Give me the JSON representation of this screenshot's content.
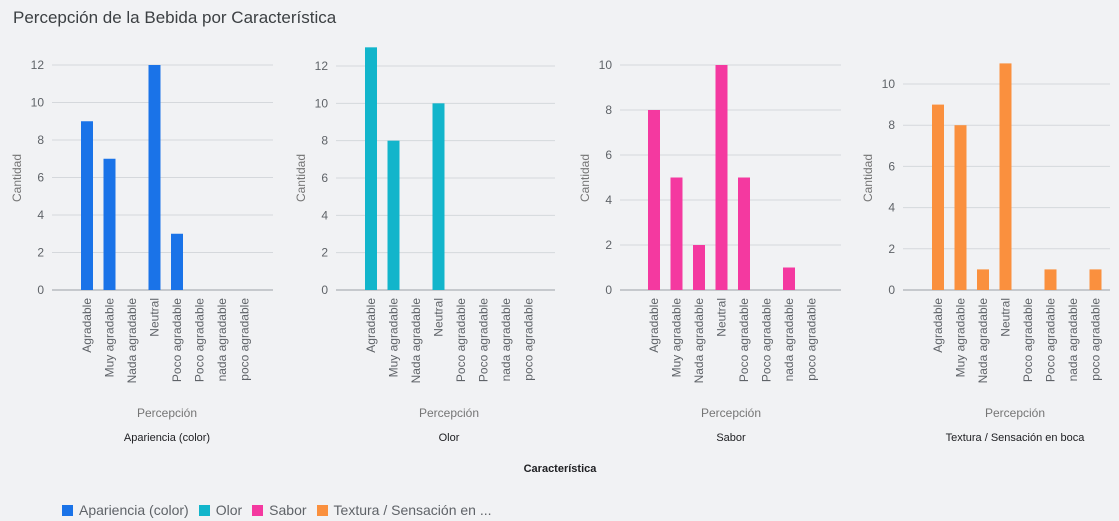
{
  "chart_data": {
    "type": "bar",
    "title": "Percepción de la Bebida por Característica",
    "outer_xlabel": "Característica",
    "legend_position": "bottom-left",
    "grid": true,
    "legend": [
      {
        "name": "Apariencia (color)",
        "color": "#1a73e8"
      },
      {
        "name": "Olor",
        "color": "#12b5cb"
      },
      {
        "name": "Sabor",
        "color": "#f439a0"
      },
      {
        "name": "Textura / Sensación en ...",
        "color": "#fa903e"
      }
    ],
    "facets": [
      {
        "facet_label": "Apariencia (color)",
        "xlabel": "Percepción",
        "ylabel": "Cantidad",
        "color": "#1a73e8",
        "ylim": [
          0,
          12
        ],
        "yticks": [
          0,
          2,
          4,
          6,
          8,
          10,
          12
        ],
        "categories": [
          "Agradable",
          "Muy agradable",
          "Nada agradable",
          "Neutral",
          "Poco agradable",
          "Poco agradable",
          "nada agradable",
          "poco agradable"
        ],
        "values": [
          9,
          7,
          0,
          12,
          3,
          0,
          0,
          0
        ]
      },
      {
        "facet_label": "Olor",
        "xlabel": "Percepción",
        "ylabel": "Cantidad",
        "color": "#12b5cb",
        "ylim": [
          0,
          13
        ],
        "yticks": [
          0,
          2,
          4,
          6,
          8,
          10,
          12
        ],
        "categories": [
          "Agradable",
          "Muy agradable",
          "Nada agradable",
          "Neutral",
          "Poco agradable",
          "Poco agradable",
          "nada agradable",
          "poco agradable"
        ],
        "values": [
          13,
          8,
          0,
          10,
          0,
          0,
          0,
          0
        ]
      },
      {
        "facet_label": "Sabor",
        "xlabel": "Percepción",
        "ylabel": "Cantidad",
        "color": "#f439a0",
        "ylim": [
          0,
          10
        ],
        "yticks": [
          0,
          2,
          4,
          6,
          8,
          10
        ],
        "categories": [
          "Agradable",
          "Muy agradable",
          "Nada agradable",
          "Neutral",
          "Poco agradable",
          "Poco agradable",
          "nada agradable",
          "poco agradable"
        ],
        "values": [
          8,
          5,
          2,
          10,
          5,
          0,
          1,
          0
        ]
      },
      {
        "facet_label": "Textura / Sensación en boca",
        "xlabel": "Percepción",
        "ylabel": "Cantidad",
        "color": "#fa903e",
        "ylim": [
          0,
          11
        ],
        "yticks": [
          0,
          2,
          4,
          6,
          8,
          10
        ],
        "categories": [
          "Agradable",
          "Muy agradable",
          "Nada agradable",
          "Neutral",
          "Poco agradable",
          "Poco agradable",
          "nada agradable",
          "poco agradable"
        ],
        "values": [
          9,
          8,
          1,
          11,
          0,
          1,
          0,
          1
        ]
      }
    ]
  }
}
